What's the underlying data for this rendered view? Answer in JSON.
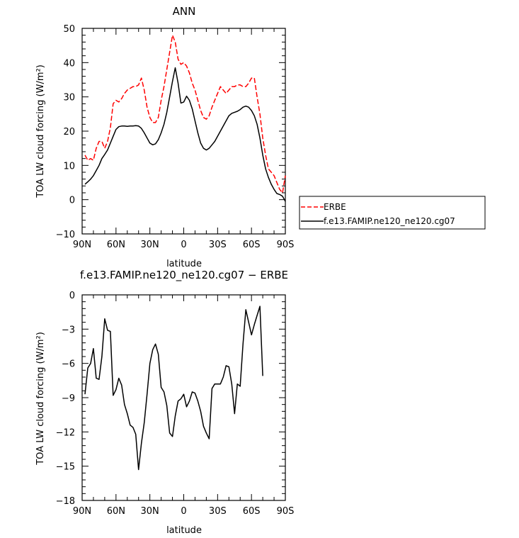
{
  "chart_data": [
    {
      "type": "line",
      "title": "ANN",
      "xlabel": "latitude",
      "ylabel": "TOA LW cloud forcing (W/m²)",
      "xlim": [
        90,
        -90
      ],
      "ylim": [
        -10,
        50
      ],
      "x_ticks": [
        90,
        60,
        30,
        0,
        -30,
        -60,
        -90
      ],
      "x_tick_labels": [
        "90N",
        "60N",
        "30N",
        "0",
        "30S",
        "60S",
        "90S"
      ],
      "y_ticks": [
        -10,
        0,
        10,
        20,
        30,
        40,
        50
      ],
      "y_tick_labels": [
        "−10",
        "0",
        "10",
        "20",
        "30",
        "40",
        "50"
      ],
      "grid": false,
      "legend_position": "right",
      "series": [
        {
          "name": "ERBE",
          "color": "#ff0000",
          "dash": "dashed",
          "points": [
            [
              87.5,
              13
            ],
            [
              85,
              11.5
            ],
            [
              82.5,
              12
            ],
            [
              80,
              11.5
            ],
            [
              77.5,
              15
            ],
            [
              75,
              17
            ],
            [
              72.5,
              17
            ],
            [
              70,
              15
            ],
            [
              67.5,
              17
            ],
            [
              65,
              21
            ],
            [
              62.5,
              28
            ],
            [
              60,
              29
            ],
            [
              57.5,
              28.5
            ],
            [
              55,
              29.5
            ],
            [
              52.5,
              31
            ],
            [
              50,
              32
            ],
            [
              47.5,
              32.5
            ],
            [
              45,
              33
            ],
            [
              42.5,
              33
            ],
            [
              40,
              33.5
            ],
            [
              37.5,
              35.5
            ],
            [
              35,
              32
            ],
            [
              32.5,
              27
            ],
            [
              30,
              24
            ],
            [
              27.5,
              22.5
            ],
            [
              25,
              22.5
            ],
            [
              22.5,
              24
            ],
            [
              20,
              29
            ],
            [
              17.5,
              33
            ],
            [
              15,
              38
            ],
            [
              12.5,
              43
            ],
            [
              10,
              48
            ],
            [
              7.5,
              46
            ],
            [
              5,
              41
            ],
            [
              2.5,
              39.5
            ],
            [
              0,
              40
            ],
            [
              -2.5,
              39
            ],
            [
              -5,
              37
            ],
            [
              -7.5,
              34
            ],
            [
              -10,
              32
            ],
            [
              -12.5,
              29
            ],
            [
              -15,
              26
            ],
            [
              -17.5,
              24
            ],
            [
              -20,
              23.5
            ],
            [
              -22.5,
              24.5
            ],
            [
              -25,
              27
            ],
            [
              -27.5,
              29
            ],
            [
              -30,
              31
            ],
            [
              -32.5,
              33
            ],
            [
              -35,
              32
            ],
            [
              -37.5,
              31
            ],
            [
              -40,
              32
            ],
            [
              -42.5,
              33
            ],
            [
              -45,
              33
            ],
            [
              -47.5,
              33.5
            ],
            [
              -50,
              33.5
            ],
            [
              -52.5,
              33
            ],
            [
              -55,
              33
            ],
            [
              -57.5,
              34
            ],
            [
              -60,
              35.5
            ],
            [
              -62.5,
              35.5
            ],
            [
              -65,
              30
            ],
            [
              -67.5,
              25
            ],
            [
              -70,
              18
            ],
            [
              -72.5,
              13
            ],
            [
              -75,
              9
            ],
            [
              -77.5,
              8
            ],
            [
              -80,
              7
            ],
            [
              -82.5,
              5
            ],
            [
              -85,
              3
            ],
            [
              -87.5,
              2
            ],
            [
              -90,
              7
            ]
          ]
        },
        {
          "name": "f.e13.FAMIP.ne120_ne120.cg07",
          "color": "#000000",
          "dash": "solid",
          "points": [
            [
              87.5,
              4.5
            ],
            [
              85,
              5.2
            ],
            [
              82.5,
              6
            ],
            [
              80,
              7
            ],
            [
              77.5,
              8.5
            ],
            [
              75,
              10
            ],
            [
              72.5,
              12
            ],
            [
              70,
              13.2
            ],
            [
              67.5,
              14.5
            ],
            [
              65,
              16.5
            ],
            [
              62.5,
              18.5
            ],
            [
              60,
              20.5
            ],
            [
              57.5,
              21.3
            ],
            [
              55,
              21.5
            ],
            [
              52.5,
              21.5
            ],
            [
              50,
              21.4
            ],
            [
              47.5,
              21.5
            ],
            [
              45,
              21.5
            ],
            [
              42.5,
              21.6
            ],
            [
              40,
              21.5
            ],
            [
              37.5,
              20.8
            ],
            [
              35,
              19.5
            ],
            [
              32.5,
              18
            ],
            [
              30,
              16.5
            ],
            [
              27.5,
              16
            ],
            [
              25,
              16.3
            ],
            [
              22.5,
              17.5
            ],
            [
              20,
              19.5
            ],
            [
              17.5,
              22
            ],
            [
              15,
              25.5
            ],
            [
              12.5,
              30
            ],
            [
              10,
              34.5
            ],
            [
              7.5,
              38.5
            ],
            [
              5,
              34
            ],
            [
              2.5,
              28.2
            ],
            [
              0,
              28.5
            ],
            [
              -2.5,
              30.2
            ],
            [
              -5,
              29
            ],
            [
              -7.5,
              26.5
            ],
            [
              -10,
              23
            ],
            [
              -12.5,
              19.5
            ],
            [
              -15,
              16.5
            ],
            [
              -17.5,
              15
            ],
            [
              -20,
              14.5
            ],
            [
              -22.5,
              15
            ],
            [
              -25,
              16
            ],
            [
              -27.5,
              17
            ],
            [
              -30,
              18.5
            ],
            [
              -32.5,
              20
            ],
            [
              -35,
              21.5
            ],
            [
              -37.5,
              23
            ],
            [
              -40,
              24.5
            ],
            [
              -42.5,
              25.2
            ],
            [
              -45,
              25.5
            ],
            [
              -47.5,
              25.8
            ],
            [
              -50,
              26.3
            ],
            [
              -52.5,
              27
            ],
            [
              -55,
              27.3
            ],
            [
              -57.5,
              27
            ],
            [
              -60,
              26
            ],
            [
              -62.5,
              24.5
            ],
            [
              -65,
              22
            ],
            [
              -67.5,
              18
            ],
            [
              -70,
              13
            ],
            [
              -72.5,
              9
            ],
            [
              -75,
              6.5
            ],
            [
              -77.5,
              4.5
            ],
            [
              -80,
              3
            ],
            [
              -82.5,
              1.8
            ],
            [
              -85,
              1.5
            ],
            [
              -87.5,
              1
            ],
            [
              -90,
              -0.5
            ]
          ]
        }
      ]
    },
    {
      "type": "line",
      "title": "f.e13.FAMIP.ne120_ne120.cg07 − ERBE",
      "xlabel": "latitude",
      "ylabel": "TOA LW cloud forcing (W/m²)",
      "xlim": [
        90,
        -90
      ],
      "ylim": [
        -18,
        0
      ],
      "x_ticks": [
        90,
        60,
        30,
        0,
        -30,
        -60,
        -90
      ],
      "x_tick_labels": [
        "90N",
        "60N",
        "30N",
        "0",
        "30S",
        "60S",
        "90S"
      ],
      "y_ticks": [
        -18,
        -15,
        -12,
        -9,
        -6,
        -3,
        0
      ],
      "y_tick_labels": [
        "−18",
        "−15",
        "−12",
        "−9",
        "−6",
        "−3",
        "0"
      ],
      "grid": false,
      "series": [
        {
          "color": "#000000",
          "dash": "solid",
          "points": [
            [
              87.5,
              -8.7
            ],
            [
              85,
              -6.4
            ],
            [
              82.5,
              -6
            ],
            [
              80,
              -4.7
            ],
            [
              77.5,
              -7.3
            ],
            [
              75,
              -7.4
            ],
            [
              72.5,
              -5.4
            ],
            [
              70,
              -2.1
            ],
            [
              67.5,
              -3.1
            ],
            [
              65,
              -3.2
            ],
            [
              62.5,
              -8.8
            ],
            [
              60,
              -8.3
            ],
            [
              57.5,
              -7.3
            ],
            [
              55,
              -7.9
            ],
            [
              52.5,
              -9.6
            ],
            [
              50,
              -10.4
            ],
            [
              47.5,
              -11.4
            ],
            [
              45,
              -11.6
            ],
            [
              42.5,
              -12.2
            ],
            [
              40,
              -15.3
            ],
            [
              37.5,
              -13
            ],
            [
              35,
              -11.2
            ],
            [
              32.5,
              -8.7
            ],
            [
              30,
              -6
            ],
            [
              27.5,
              -4.8
            ],
            [
              25,
              -4.3
            ],
            [
              22.5,
              -5.2
            ],
            [
              20,
              -8.1
            ],
            [
              17.5,
              -8.5
            ],
            [
              15,
              -9.7
            ],
            [
              12.5,
              -12.1
            ],
            [
              10,
              -12.4
            ],
            [
              7.5,
              -10.6
            ],
            [
              5,
              -9.3
            ],
            [
              2.5,
              -9.1
            ],
            [
              0,
              -8.7
            ],
            [
              -2.5,
              -9.8
            ],
            [
              -5,
              -9.3
            ],
            [
              -7.5,
              -8.5
            ],
            [
              -10,
              -8.6
            ],
            [
              -12.5,
              -9.3
            ],
            [
              -15,
              -10.2
            ],
            [
              -17.5,
              -11.5
            ],
            [
              -20,
              -12.1
            ],
            [
              -22.5,
              -12.6
            ],
            [
              -25,
              -8.2
            ],
            [
              -27.5,
              -7.8
            ],
            [
              -30,
              -7.8
            ],
            [
              -32.5,
              -7.8
            ],
            [
              -35,
              -7.2
            ],
            [
              -37.5,
              -6.2
            ],
            [
              -40,
              -6.3
            ],
            [
              -42.5,
              -7.8
            ],
            [
              -45,
              -10.4
            ],
            [
              -47.5,
              -7.8
            ],
            [
              -50,
              -8
            ],
            [
              -52.5,
              -4.3
            ],
            [
              -55,
              -1.3
            ],
            [
              -57.5,
              -2.4
            ],
            [
              -60,
              -3.5
            ],
            [
              -62.5,
              -2.6
            ],
            [
              -65,
              -1.8
            ],
            [
              -67.5,
              -1
            ],
            [
              -70,
              -7.1
            ]
          ]
        }
      ]
    }
  ]
}
